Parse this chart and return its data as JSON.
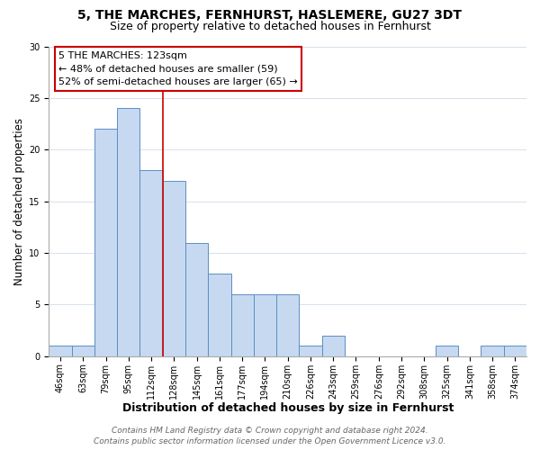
{
  "title": "5, THE MARCHES, FERNHURST, HASLEMERE, GU27 3DT",
  "subtitle": "Size of property relative to detached houses in Fernhurst",
  "xlabel": "Distribution of detached houses by size in Fernhurst",
  "ylabel": "Number of detached properties",
  "bar_labels": [
    "46sqm",
    "63sqm",
    "79sqm",
    "95sqm",
    "112sqm",
    "128sqm",
    "145sqm",
    "161sqm",
    "177sqm",
    "194sqm",
    "210sqm",
    "226sqm",
    "243sqm",
    "259sqm",
    "276sqm",
    "292sqm",
    "308sqm",
    "325sqm",
    "341sqm",
    "358sqm",
    "374sqm"
  ],
  "bar_values": [
    1,
    1,
    22,
    24,
    18,
    17,
    11,
    8,
    6,
    6,
    6,
    1,
    2,
    0,
    0,
    0,
    0,
    1,
    0,
    1,
    1
  ],
  "bar_color": "#c6d9f0",
  "bar_edge_color": "#5b8ec4",
  "ylim": [
    0,
    30
  ],
  "yticks": [
    0,
    5,
    10,
    15,
    20,
    25,
    30
  ],
  "annotation_title": "5 THE MARCHES: 123sqm",
  "annotation_line1": "← 48% of detached houses are smaller (59)",
  "annotation_line2": "52% of semi-detached houses are larger (65) →",
  "annotation_box_color": "#ffffff",
  "annotation_box_edge": "#cc0000",
  "vline_color": "#cc0000",
  "vline_index": 5,
  "footer1": "Contains HM Land Registry data © Crown copyright and database right 2024.",
  "footer2": "Contains public sector information licensed under the Open Government Licence v3.0.",
  "title_fontsize": 10,
  "subtitle_fontsize": 9,
  "xlabel_fontsize": 9,
  "ylabel_fontsize": 8.5,
  "tick_fontsize": 7,
  "annotation_fontsize": 8,
  "footer_fontsize": 6.5,
  "grid_color": "#d0dce8"
}
